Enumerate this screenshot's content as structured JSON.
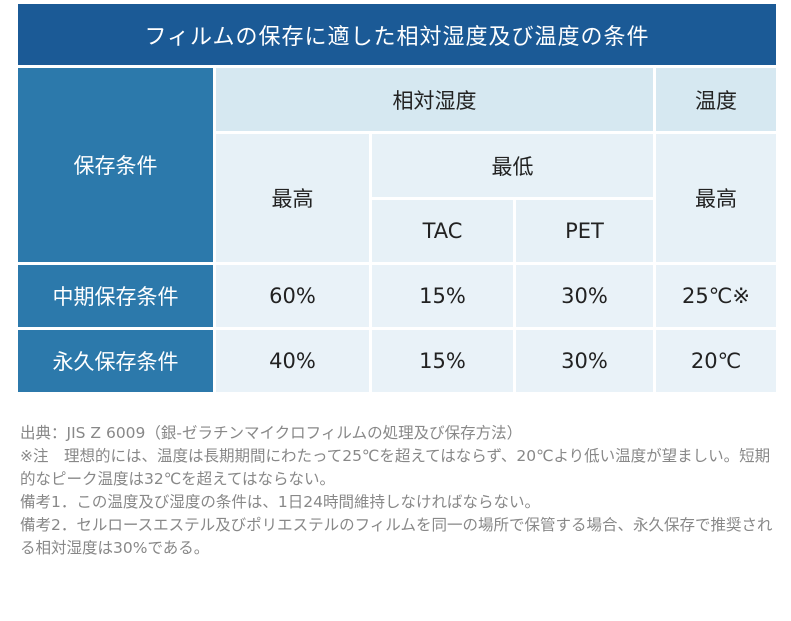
{
  "title": "フィルムの保存に適した相対湿度及び温度の条件",
  "table": {
    "row_header_label": "保存条件",
    "group_rh": "相対湿度",
    "group_temp": "温度",
    "col_max": "最高",
    "col_min": "最低",
    "col_tac": "TAC",
    "col_pet": "PET",
    "col_temp_max": "最高",
    "rows": [
      {
        "label": "中期保存条件",
        "max": "60%",
        "tac": "15%",
        "pet": "30%",
        "temp": "25℃※"
      },
      {
        "label": "永久保存条件",
        "max": "40%",
        "tac": "15%",
        "pet": "30%",
        "temp": "20℃"
      }
    ]
  },
  "notes": [
    "出典：JIS Z 6009（銀-ゼラチンマイクロフィルムの処理及び保存方法）",
    "※注　理想的には、温度は長期期間にわたって25℃を超えてはならず、20℃より低い温度が望ましい。短期的なピーク温度は32℃を超えてはならない。",
    "備考1．この温度及び湿度の条件は、1日24時間維持しなければならない。",
    "備考2．セルロースエステル及びポリエステルのフィルムを同一の場所で保管する場合、永久保存で推奨される相対湿度は30%である。"
  ]
}
